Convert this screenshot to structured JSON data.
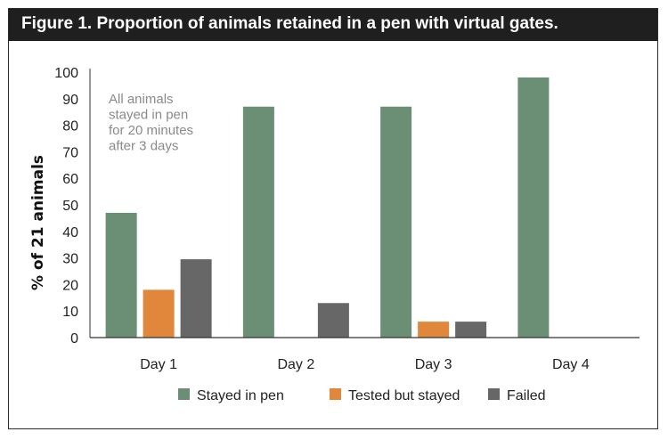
{
  "figure": {
    "title": "Figure 1. Proportion of animals retained in a pen with virtual gates."
  },
  "chart_data": {
    "type": "bar",
    "title": "Figure 1. Proportion of animals retained in a pen with virtual gates.",
    "xlabel": "",
    "ylabel": "% of 21 animals",
    "ylim": [
      0,
      100
    ],
    "yticks": [
      0,
      10,
      20,
      30,
      40,
      50,
      60,
      70,
      80,
      90,
      100
    ],
    "grid": false,
    "legend_position": "bottom",
    "categories": [
      "Day 1",
      "Day 2",
      "Day 3",
      "Day 4"
    ],
    "series": [
      {
        "name": "Stayed in pen",
        "color": "#6b8f74",
        "values": [
          47,
          87,
          87,
          98
        ]
      },
      {
        "name": "Tested but stayed",
        "color": "#e0873c",
        "values": [
          18,
          0,
          6,
          0
        ]
      },
      {
        "name": "Failed",
        "color": "#676767",
        "values": [
          29.5,
          13,
          6,
          0
        ]
      }
    ],
    "annotation": {
      "lines": [
        "All animals",
        "stayed in pen",
        "for 20 minutes",
        "after 3 days"
      ]
    }
  }
}
